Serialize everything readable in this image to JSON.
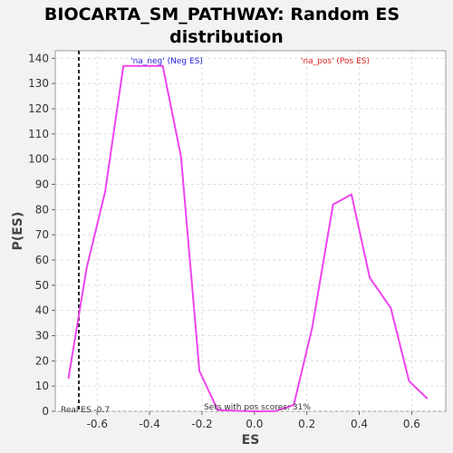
{
  "chart_data": {
    "type": "line",
    "title_lines": [
      "BIOCARTA_SM_PATHWAY: Random ES",
      "distribution"
    ],
    "xlabel": "ES",
    "ylabel": "P(ES)",
    "xlim": [
      -0.76,
      0.73
    ],
    "ylim": [
      0,
      143
    ],
    "xticks": [
      -0.6,
      -0.4,
      -0.2,
      0.0,
      0.2,
      0.4,
      0.6
    ],
    "xtick_labels": [
      "-0.6",
      "-0.4",
      "-0.2",
      "0.0",
      "0.2",
      "0.4",
      "0.6"
    ],
    "yticks": [
      0,
      10,
      20,
      30,
      40,
      50,
      60,
      70,
      80,
      90,
      100,
      110,
      120,
      130,
      140
    ],
    "ytick_labels": [
      "0",
      "10",
      "20",
      "30",
      "40",
      "50",
      "60",
      "70",
      "80",
      "90",
      "100",
      "110",
      "120",
      "130",
      "140"
    ],
    "grid": true,
    "series": [
      {
        "color": "#ee44ee",
        "x": [
          -0.71,
          -0.64,
          -0.57,
          -0.5,
          -0.35,
          -0.28,
          -0.21,
          -0.14,
          -0.07,
          0.0,
          0.08,
          0.15,
          0.22,
          0.3,
          0.37,
          0.44,
          0.52,
          0.59,
          0.66
        ],
        "y": [
          13,
          57,
          87,
          137,
          137,
          101,
          16,
          0.5,
          0.2,
          0,
          0.1,
          2.5,
          33,
          82,
          86,
          53,
          41,
          12,
          5
        ]
      }
    ],
    "reference_line": {
      "x": -0.67,
      "label": "Real ES -0.7"
    },
    "annotations": {
      "neg": {
        "text": "'na_neg' (Neg ES)",
        "color": "#2222dd"
      },
      "pos": {
        "text": "'na_pos' (Pos ES)",
        "color": "#dd2222"
      },
      "sets": {
        "text": "Sets with pos scores: 31%"
      }
    }
  }
}
